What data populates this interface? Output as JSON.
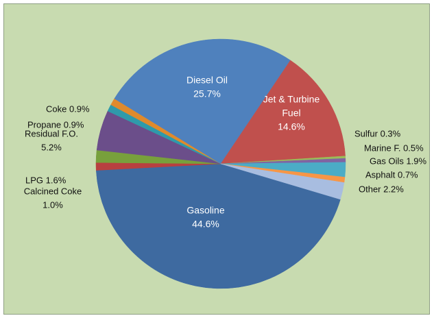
{
  "chart_data": {
    "type": "pie",
    "background": "#c8dbb0",
    "slices": [
      {
        "label": "Gasoline",
        "value": 44.6,
        "color": "#3e6aa0",
        "text_lines": [
          "Gasoline",
          "44.6%"
        ]
      },
      {
        "label": "Calcined Coke",
        "value": 1.0,
        "color": "#b84040",
        "text_lines": [
          "Calcined Coke",
          "1.0%"
        ]
      },
      {
        "label": "LPG",
        "value": 1.6,
        "color": "#78a03c",
        "text_lines": [
          "LPG 1.6%"
        ]
      },
      {
        "label": "Residual F.O.",
        "value": 5.2,
        "color": "#6b4e8a",
        "text_lines": [
          "Residual F.O.",
          "5.2%"
        ]
      },
      {
        "label": "Propane",
        "value": 0.9,
        "color": "#2f9aaa",
        "text_lines": [
          "Propane 0.9%"
        ]
      },
      {
        "label": "Coke",
        "value": 0.9,
        "color": "#e08a2c",
        "text_lines": [
          "Coke 0.9%"
        ]
      },
      {
        "label": "Diesel Oil",
        "value": 25.7,
        "color": "#4f81bd",
        "text_lines": [
          "Diesel Oil",
          "25.7%"
        ]
      },
      {
        "label": "Jet & Turbine Fuel",
        "value": 14.6,
        "color": "#c0504d",
        "text_lines": [
          "Jet & Turbine",
          "Fuel",
          "14.6%"
        ]
      },
      {
        "label": "Sulfur",
        "value": 0.3,
        "color": "#9bbb59",
        "text_lines": [
          "Sulfur 0.3%"
        ]
      },
      {
        "label": "Marine F.",
        "value": 0.5,
        "color": "#8064a2",
        "text_lines": [
          "Marine F. 0.5%"
        ]
      },
      {
        "label": "Gas Oils",
        "value": 1.9,
        "color": "#4bacc6",
        "text_lines": [
          "Gas Oils 1.9%"
        ]
      },
      {
        "label": "Asphalt",
        "value": 0.7,
        "color": "#f79646",
        "text_lines": [
          "Asphalt 0.7%"
        ]
      },
      {
        "label": "Other",
        "value": 2.2,
        "color": "#a8bde0",
        "text_lines": [
          "Other 2.2%"
        ]
      }
    ]
  }
}
